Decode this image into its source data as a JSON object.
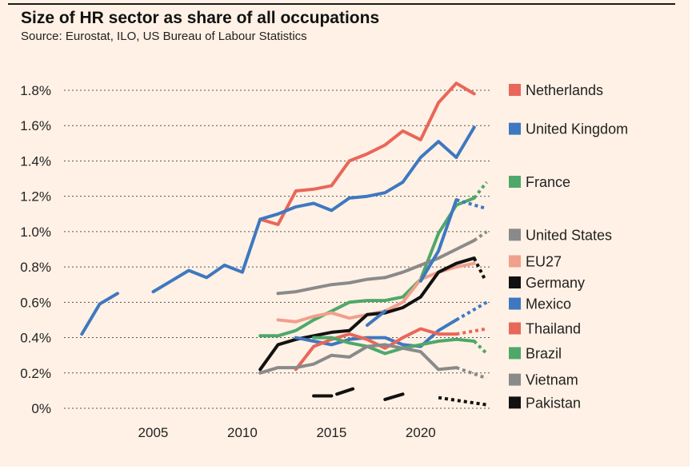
{
  "title": "Size of HR sector as share of all occupations",
  "source": "Source: Eurostat, ILO, US Bureau of Labour Statistics",
  "colors": {
    "background": "#fff1e5",
    "text": "#222222",
    "grid": "#555555"
  },
  "chart_data": {
    "type": "line",
    "xlabel": "",
    "ylabel": "",
    "xlim": [
      2000,
      2024
    ],
    "ylim": [
      0,
      1.8
    ],
    "x_ticks": [
      2005,
      2010,
      2015,
      2020
    ],
    "x_tick_labels": [
      "2005",
      "2010",
      "2015",
      "2020"
    ],
    "y_ticks": [
      0,
      0.2,
      0.4,
      0.6,
      0.8,
      1.0,
      1.2,
      1.4,
      1.6,
      1.8
    ],
    "y_tick_labels": [
      "0%",
      "0.2%",
      "0.4%",
      "0.6%",
      "0.8%",
      "1.0%",
      "1.2%",
      "1.4%",
      "1.6%",
      "1.8%"
    ],
    "grid": "horizontal dotted",
    "legend": "right, labels at line ends",
    "note": "dotted segments mark projected values",
    "series": [
      {
        "name": "Netherlands",
        "color": "#e8675a",
        "legend_y": 1.8,
        "segments": [
          {
            "dash": false,
            "x": [
              2011,
              2012,
              2013,
              2014,
              2015,
              2016,
              2017,
              2018,
              2019,
              2020,
              2021,
              2022,
              2023
            ],
            "y": [
              1.07,
              1.04,
              1.23,
              1.24,
              1.26,
              1.4,
              1.44,
              1.49,
              1.57,
              1.52,
              1.73,
              1.84,
              1.78
            ]
          }
        ]
      },
      {
        "name": "United Kingdom",
        "color": "#3e78c0",
        "legend_y": 1.58,
        "segments": [
          {
            "dash": false,
            "x": [
              2001,
              2002,
              2003
            ],
            "y": [
              0.42,
              0.59,
              0.65
            ]
          },
          {
            "dash": false,
            "x": [
              2005,
              2006,
              2007,
              2008,
              2009,
              2010,
              2011,
              2012,
              2013,
              2014,
              2015,
              2016,
              2017,
              2018,
              2019,
              2020,
              2021,
              2022,
              2023
            ],
            "y": [
              0.66,
              0.72,
              0.78,
              0.74,
              0.81,
              0.77,
              1.07,
              1.1,
              1.14,
              1.16,
              1.12,
              1.19,
              1.2,
              1.22,
              1.28,
              1.42,
              1.51,
              1.42,
              1.59
            ]
          }
        ]
      },
      {
        "name": "France",
        "color": "#4fa869",
        "legend_y": 1.28,
        "segments": [
          {
            "dash": false,
            "x": [
              2011,
              2012,
              2013,
              2014,
              2015,
              2016,
              2017,
              2018,
              2019,
              2020,
              2021,
              2022,
              2023
            ],
            "y": [
              0.41,
              0.41,
              0.44,
              0.5,
              0.55,
              0.6,
              0.61,
              0.61,
              0.63,
              0.73,
              0.99,
              1.15,
              1.19
            ]
          },
          {
            "dash": true,
            "x": [
              2023,
              2023.7
            ],
            "y": [
              1.19,
              1.28
            ]
          }
        ]
      },
      {
        "name": "United States",
        "color": "#8a8a8a",
        "legend_y": 0.98,
        "segments": [
          {
            "dash": false,
            "x": [
              2012,
              2013,
              2014,
              2015,
              2016,
              2017,
              2018,
              2019,
              2020,
              2021,
              2022,
              2023
            ],
            "y": [
              0.65,
              0.66,
              0.68,
              0.7,
              0.71,
              0.73,
              0.74,
              0.77,
              0.81,
              0.85,
              0.9,
              0.95
            ]
          },
          {
            "dash": true,
            "x": [
              2023,
              2023.7
            ],
            "y": [
              0.95,
              1.0
            ]
          }
        ]
      },
      {
        "name": "EU27",
        "color": "#f0a08c",
        "legend_y": 0.83,
        "segments": [
          {
            "dash": false,
            "x": [
              2012,
              2013,
              2014,
              2015,
              2016,
              2017,
              2018,
              2019,
              2020,
              2021,
              2022,
              2023
            ],
            "y": [
              0.5,
              0.49,
              0.52,
              0.54,
              0.51,
              0.53,
              0.55,
              0.6,
              0.73,
              0.77,
              0.8,
              0.82
            ]
          }
        ]
      },
      {
        "name": "Germany",
        "color": "#111111",
        "legend_y": 0.71,
        "segments": [
          {
            "dash": false,
            "x": [
              2011,
              2012,
              2013,
              2014,
              2015,
              2016,
              2017,
              2018,
              2019,
              2020,
              2021,
              2022,
              2023
            ],
            "y": [
              0.22,
              0.36,
              0.39,
              0.41,
              0.43,
              0.44,
              0.53,
              0.54,
              0.57,
              0.63,
              0.77,
              0.82,
              0.85
            ]
          },
          {
            "dash": true,
            "x": [
              2023,
              2023.6
            ],
            "y": [
              0.85,
              0.73
            ]
          }
        ]
      },
      {
        "name": "Mexico",
        "color": "#3e78c0",
        "legend_y": 0.59,
        "segments": [
          {
            "dash": false,
            "x": [
              2013,
              2014,
              2015,
              2016,
              2017,
              2018,
              2019,
              2020,
              2021,
              2022
            ],
            "y": [
              0.4,
              0.38,
              0.36,
              0.39,
              0.4,
              0.4,
              0.36,
              0.35,
              0.44,
              0.5
            ]
          },
          {
            "dash": true,
            "x": [
              2022,
              2023.7
            ],
            "y": [
              0.5,
              0.6
            ]
          },
          {
            "dash": false,
            "x": [
              2017,
              2018
            ],
            "y": [
              0.47,
              0.55
            ]
          },
          {
            "dash": false,
            "x": [
              2020,
              2021,
              2022
            ],
            "y": [
              0.72,
              0.89,
              1.18
            ]
          },
          {
            "dash": true,
            "x": [
              2022,
              2023.7
            ],
            "y": [
              1.18,
              1.13
            ]
          }
        ]
      },
      {
        "name": "Thailand",
        "color": "#e8675a",
        "legend_y": 0.45,
        "segments": [
          {
            "dash": false,
            "x": [
              2013,
              2014,
              2015,
              2016,
              2017,
              2018,
              2019,
              2020,
              2021,
              2022
            ],
            "y": [
              0.22,
              0.35,
              0.39,
              0.42,
              0.39,
              0.34,
              0.4,
              0.45,
              0.42,
              0.42
            ]
          },
          {
            "dash": true,
            "x": [
              2022,
              2023.7
            ],
            "y": [
              0.42,
              0.45
            ]
          }
        ]
      },
      {
        "name": "Brazil",
        "color": "#4fa869",
        "legend_y": 0.31,
        "segments": [
          {
            "dash": false,
            "x": [
              2014,
              2015,
              2016,
              2017,
              2018,
              2019,
              2020,
              2021,
              2022,
              2023
            ],
            "y": [
              0.4,
              0.4,
              0.37,
              0.35,
              0.31,
              0.34,
              0.36,
              0.38,
              0.39,
              0.38
            ]
          },
          {
            "dash": true,
            "x": [
              2023,
              2023.7
            ],
            "y": [
              0.38,
              0.31
            ]
          }
        ]
      },
      {
        "name": "Vietnam",
        "color": "#8a8a8a",
        "legend_y": 0.16,
        "segments": [
          {
            "dash": false,
            "x": [
              2011,
              2012,
              2013,
              2014,
              2015,
              2016,
              2017,
              2018,
              2019,
              2020,
              2021,
              2022
            ],
            "y": [
              0.2,
              0.23,
              0.23,
              0.25,
              0.3,
              0.29,
              0.35,
              0.36,
              0.34,
              0.32,
              0.22,
              0.23
            ]
          },
          {
            "dash": true,
            "x": [
              2022,
              2023.7
            ],
            "y": [
              0.23,
              0.17
            ]
          }
        ]
      },
      {
        "name": "Pakistan",
        "color": "#111111",
        "legend_y": 0.03,
        "segments": [
          {
            "dash": false,
            "x": [
              2014,
              2015
            ],
            "y": [
              0.07,
              0.07
            ]
          },
          {
            "dash": false,
            "x": [
              2015.3,
              2016.2
            ],
            "y": [
              0.08,
              0.11
            ]
          },
          {
            "dash": false,
            "x": [
              2018,
              2019
            ],
            "y": [
              0.05,
              0.08
            ]
          },
          {
            "dash": true,
            "x": [
              2021,
              2023.7
            ],
            "y": [
              0.06,
              0.02
            ]
          }
        ]
      }
    ]
  }
}
